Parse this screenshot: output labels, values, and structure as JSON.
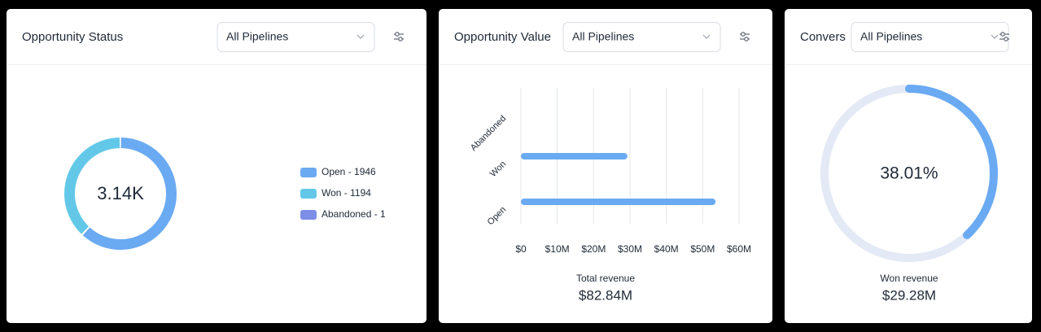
{
  "cards": [
    {
      "title": "Opportunity Status",
      "dropdown": "All Pipelines",
      "chart": {
        "type": "donut",
        "center_label": "3.14K",
        "values": [
          1946,
          1194,
          1
        ],
        "value_labels": [
          "Open - 1946",
          "Won - 1194",
          "Abandoned - 1"
        ],
        "colors": [
          "#6aaaf2",
          "#63c8e8",
          "#7d8ee6"
        ]
      }
    },
    {
      "title": "Opportunity Value",
      "dropdown": "All Pipelines",
      "chart": {
        "type": "bar",
        "orientation": "horizontal",
        "color": "#6aaaf2",
        "categories": [
          "Open",
          "Won",
          "Abandoned"
        ],
        "values": [
          53560000,
          29280000,
          0
        ],
        "xlim": [
          0,
          60000000
        ],
        "xticks": [
          {
            "value": 0,
            "label": "$0"
          },
          {
            "value": 10000000,
            "label": "$10M"
          },
          {
            "value": 20000000,
            "label": "$20M"
          },
          {
            "value": 30000000,
            "label": "$30M"
          },
          {
            "value": 40000000,
            "label": "$40M"
          },
          {
            "value": 50000000,
            "label": "$50M"
          },
          {
            "value": 60000000,
            "label": "$60M"
          }
        ],
        "grid": true,
        "summary_label": "Total revenue",
        "summary_value": "$82.84M"
      }
    },
    {
      "title": "Convers",
      "dropdown": "All Pipelines",
      "chart": {
        "type": "gauge",
        "value": 38.01,
        "value_label": "38.01%",
        "ylim": [
          0,
          100
        ],
        "color": "#6aaaf2",
        "track_color": "#e4e9f6",
        "summary_label": "Won revenue",
        "summary_value": "$29.28M"
      }
    }
  ]
}
